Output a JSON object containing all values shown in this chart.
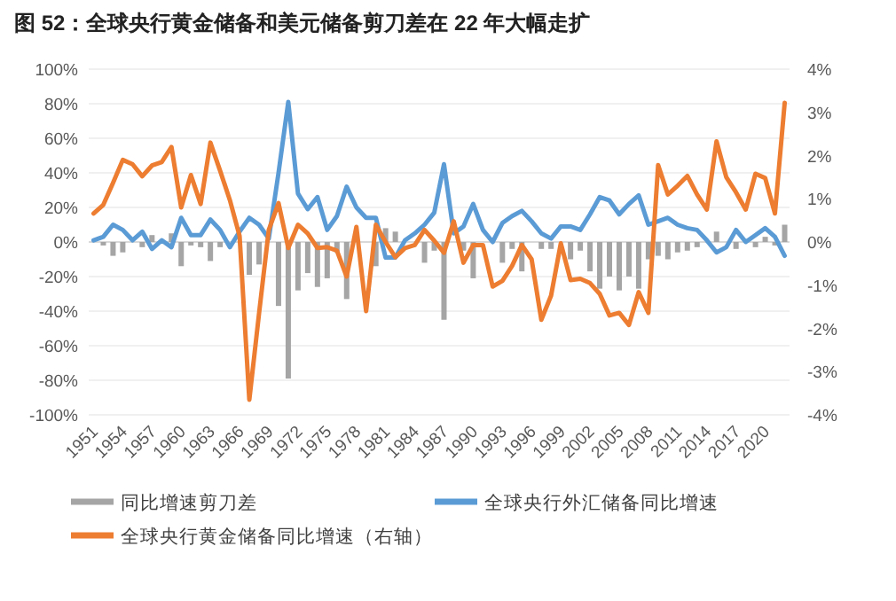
{
  "chart_data": {
    "type": "bar",
    "title": "图 52：全球央行黄金储备和美元储备剪刀差在 22 年大幅走扩",
    "categories": [
      "1951",
      null,
      null,
      "1954",
      null,
      null,
      "1957",
      null,
      null,
      "1960",
      null,
      null,
      "1963",
      null,
      null,
      "1966",
      null,
      null,
      "1969",
      null,
      null,
      "1972",
      null,
      null,
      "1975",
      null,
      null,
      "1978",
      null,
      null,
      "1981",
      null,
      null,
      "1984",
      null,
      null,
      "1987",
      null,
      null,
      "1990",
      null,
      null,
      "1993",
      null,
      null,
      "1996",
      null,
      null,
      "1999",
      null,
      null,
      "2002",
      null,
      null,
      "2005",
      null,
      null,
      "2008",
      null,
      null,
      "2011",
      null,
      null,
      "2014",
      null,
      null,
      "2017",
      null,
      null,
      "2020",
      null,
      null
    ],
    "series": [
      {
        "name": "同比增速剪刀差",
        "color": "#a5a5a5",
        "values": [
          0,
          -2,
          -8,
          -6,
          0,
          -3,
          4,
          0,
          5,
          -14,
          -2,
          -3,
          -11,
          -3,
          0,
          0,
          -19,
          -13,
          0,
          -37,
          -79,
          -28,
          -18,
          -26,
          -21,
          -6,
          -33,
          null,
          0,
          -14,
          8,
          6,
          0,
          null,
          -12,
          -5,
          -45,
          0,
          -5,
          -21,
          null,
          0,
          -12,
          -4,
          -17,
          0,
          -4,
          -4,
          0,
          -10,
          -5,
          -17,
          -27,
          -20,
          -28,
          -20,
          -27,
          -10,
          -8,
          -10,
          -6,
          -5,
          -3,
          0,
          6,
          null,
          -4,
          0,
          -3,
          3,
          -2,
          10
        ]
      },
      {
        "name": "全球央行外汇储备同比增速",
        "type": "line",
        "color": "#5b9bd5",
        "values": [
          1,
          3,
          10,
          7,
          1,
          6,
          -4,
          1,
          -3,
          14,
          4,
          4,
          13,
          7,
          -3,
          6,
          14,
          10,
          2,
          40,
          81,
          28,
          19,
          26,
          7,
          15,
          32,
          20,
          14,
          14,
          -9,
          -9,
          1,
          5,
          10,
          17,
          45,
          5,
          9,
          22,
          7,
          0,
          11,
          15,
          18,
          12,
          5,
          2,
          9,
          9,
          7,
          16,
          26,
          24,
          16,
          22,
          27,
          10,
          12,
          14,
          10,
          8,
          7,
          1,
          -6,
          -3,
          7,
          0,
          4,
          8,
          3,
          -8
        ]
      },
      {
        "name": "全球央行黄金储备同比增速（右轴）",
        "type": "line",
        "axis": "y2",
        "color": "#ed7d31",
        "values": [
          0.66,
          0.86,
          1.37,
          1.9,
          1.8,
          1.52,
          1.77,
          1.85,
          2.2,
          0.8,
          1.55,
          0.88,
          2.3,
          1.65,
          0.97,
          0.14,
          -3.65,
          -1.65,
          0.28,
          0.9,
          -0.14,
          0.4,
          0.2,
          -0.14,
          -0.12,
          -0.2,
          -0.8,
          0.35,
          -1.6,
          0.4,
          0,
          -0.35,
          -0.14,
          -0.07,
          0.28,
          0.03,
          -0.25,
          0.48,
          -0.48,
          -0.07,
          -0.07,
          -1.03,
          -0.9,
          -0.55,
          -0.07,
          -0.4,
          -1.8,
          -1.24,
          -0.03,
          -0.88,
          -0.85,
          -0.95,
          -1.2,
          -1.7,
          -1.64,
          -1.92,
          -1.16,
          -1.64,
          1.78,
          1.1,
          1.3,
          1.53,
          1.1,
          0.75,
          2.33,
          1.5,
          1.15,
          0.75,
          1.58,
          1.48,
          0.66,
          3.22
        ]
      }
    ],
    "ylim": [
      -100,
      100
    ],
    "yticks": [
      {
        "value": -100,
        "label": "-100%"
      },
      {
        "value": -80,
        "label": "-80%"
      },
      {
        "value": -60,
        "label": "-60%"
      },
      {
        "value": -40,
        "label": "-40%"
      },
      {
        "value": -20,
        "label": "-20%"
      },
      {
        "value": 0,
        "label": "0%"
      },
      {
        "value": 20,
        "label": "20%"
      },
      {
        "value": 40,
        "label": "40%"
      },
      {
        "value": 60,
        "label": "60%"
      },
      {
        "value": 80,
        "label": "80%"
      },
      {
        "value": 100,
        "label": "100%"
      }
    ],
    "y2lim": [
      -4,
      4
    ],
    "y2ticks": [
      {
        "value": -4,
        "label": "-4%"
      },
      {
        "value": -3,
        "label": "-3%"
      },
      {
        "value": -2,
        "label": "-2%"
      },
      {
        "value": -1,
        "label": "-1%"
      },
      {
        "value": 0,
        "label": "0%"
      },
      {
        "value": 1,
        "label": "1%"
      },
      {
        "value": 2,
        "label": "2%"
      },
      {
        "value": 3,
        "label": "3%"
      },
      {
        "value": 4,
        "label": "4%"
      }
    ],
    "grid": "y",
    "legend": "bottom"
  }
}
